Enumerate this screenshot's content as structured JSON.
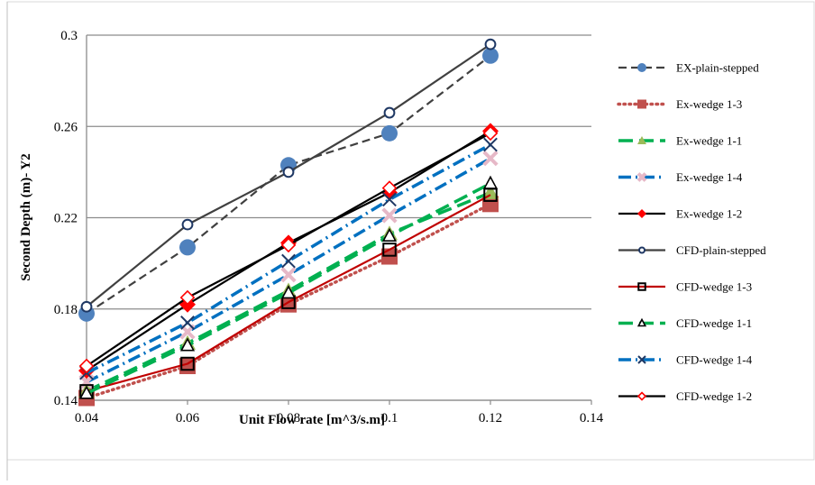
{
  "chart_data": {
    "type": "line",
    "title": "",
    "xlabel": "Unit Flow rate [m^3/s.m]",
    "ylabel": "Second  Depth (m)- Y2",
    "xlim": [
      0.04,
      0.14
    ],
    "ylim": [
      0.14,
      0.3
    ],
    "x_ticks": [
      "0.04",
      "0.06",
      "0.08",
      "0.1",
      "0.12",
      "0.14"
    ],
    "y_ticks": [
      "0.14",
      "0.18",
      "0.22",
      "0.26",
      "0.3"
    ],
    "grid": "horizontal",
    "legend_position": "right",
    "x": [
      0.04,
      0.06,
      0.08,
      0.1,
      0.12
    ],
    "series": [
      {
        "name": "EX-plain-stepped",
        "values": [
          0.178,
          0.207,
          0.243,
          0.257,
          0.291
        ],
        "color": "#404040",
        "marker_color": "#4f81bd",
        "dash": "dashed",
        "marker": "circle-filled"
      },
      {
        "name": "Ex-wedge 1-3",
        "values": [
          0.141,
          0.155,
          0.182,
          0.203,
          0.226
        ],
        "color": "#c0504d",
        "marker_color": "#c0504d",
        "dash": "dotted",
        "marker": "square-filled"
      },
      {
        "name": "Ex-wedge 1-1",
        "values": [
          0.144,
          0.165,
          0.188,
          0.213,
          0.231
        ],
        "color": "#00b050",
        "marker_color": "#9bbb59",
        "dash": "longdash",
        "marker": "triangle-filled"
      },
      {
        "name": "Ex-wedge 1-4",
        "values": [
          0.148,
          0.17,
          0.195,
          0.221,
          0.246
        ],
        "color": "#0070c0",
        "marker_color": "#8064a2",
        "dash": "dashdot",
        "marker": "x-pink"
      },
      {
        "name": "Ex-wedge 1-2",
        "values": [
          0.153,
          0.182,
          0.209,
          0.231,
          0.258
        ],
        "color": "#000000",
        "marker_color": "#ff0000",
        "dash": "solid",
        "marker": "diamond-filled"
      },
      {
        "name": "CFD-plain-stepped",
        "values": [
          0.181,
          0.217,
          0.24,
          0.266,
          0.296
        ],
        "color": "#404040",
        "marker_color": "#1f3864",
        "dash": "solid",
        "marker": "circle-open"
      },
      {
        "name": "CFD-wedge 1-3",
        "values": [
          0.144,
          0.156,
          0.183,
          0.206,
          0.23
        ],
        "color": "#c00000",
        "marker_color": "#000000",
        "dash": "solid",
        "marker": "square-open"
      },
      {
        "name": "CFD-wedge 1-1",
        "values": [
          0.143,
          0.164,
          0.187,
          0.212,
          0.235
        ],
        "color": "#00b050",
        "marker_color": "#000000",
        "dash": "longdash",
        "marker": "triangle-open"
      },
      {
        "name": "CFD-wedge 1-4",
        "values": [
          0.152,
          0.174,
          0.201,
          0.228,
          0.252
        ],
        "color": "#0070c0",
        "marker_color": "#1f3864",
        "dash": "dashdot",
        "marker": "x"
      },
      {
        "name": "CFD-wedge 1-2",
        "values": [
          0.155,
          0.185,
          0.208,
          0.233,
          0.257
        ],
        "color": "#000000",
        "marker_color": "#ff0000",
        "dash": "solid",
        "marker": "diamond-open"
      }
    ]
  }
}
